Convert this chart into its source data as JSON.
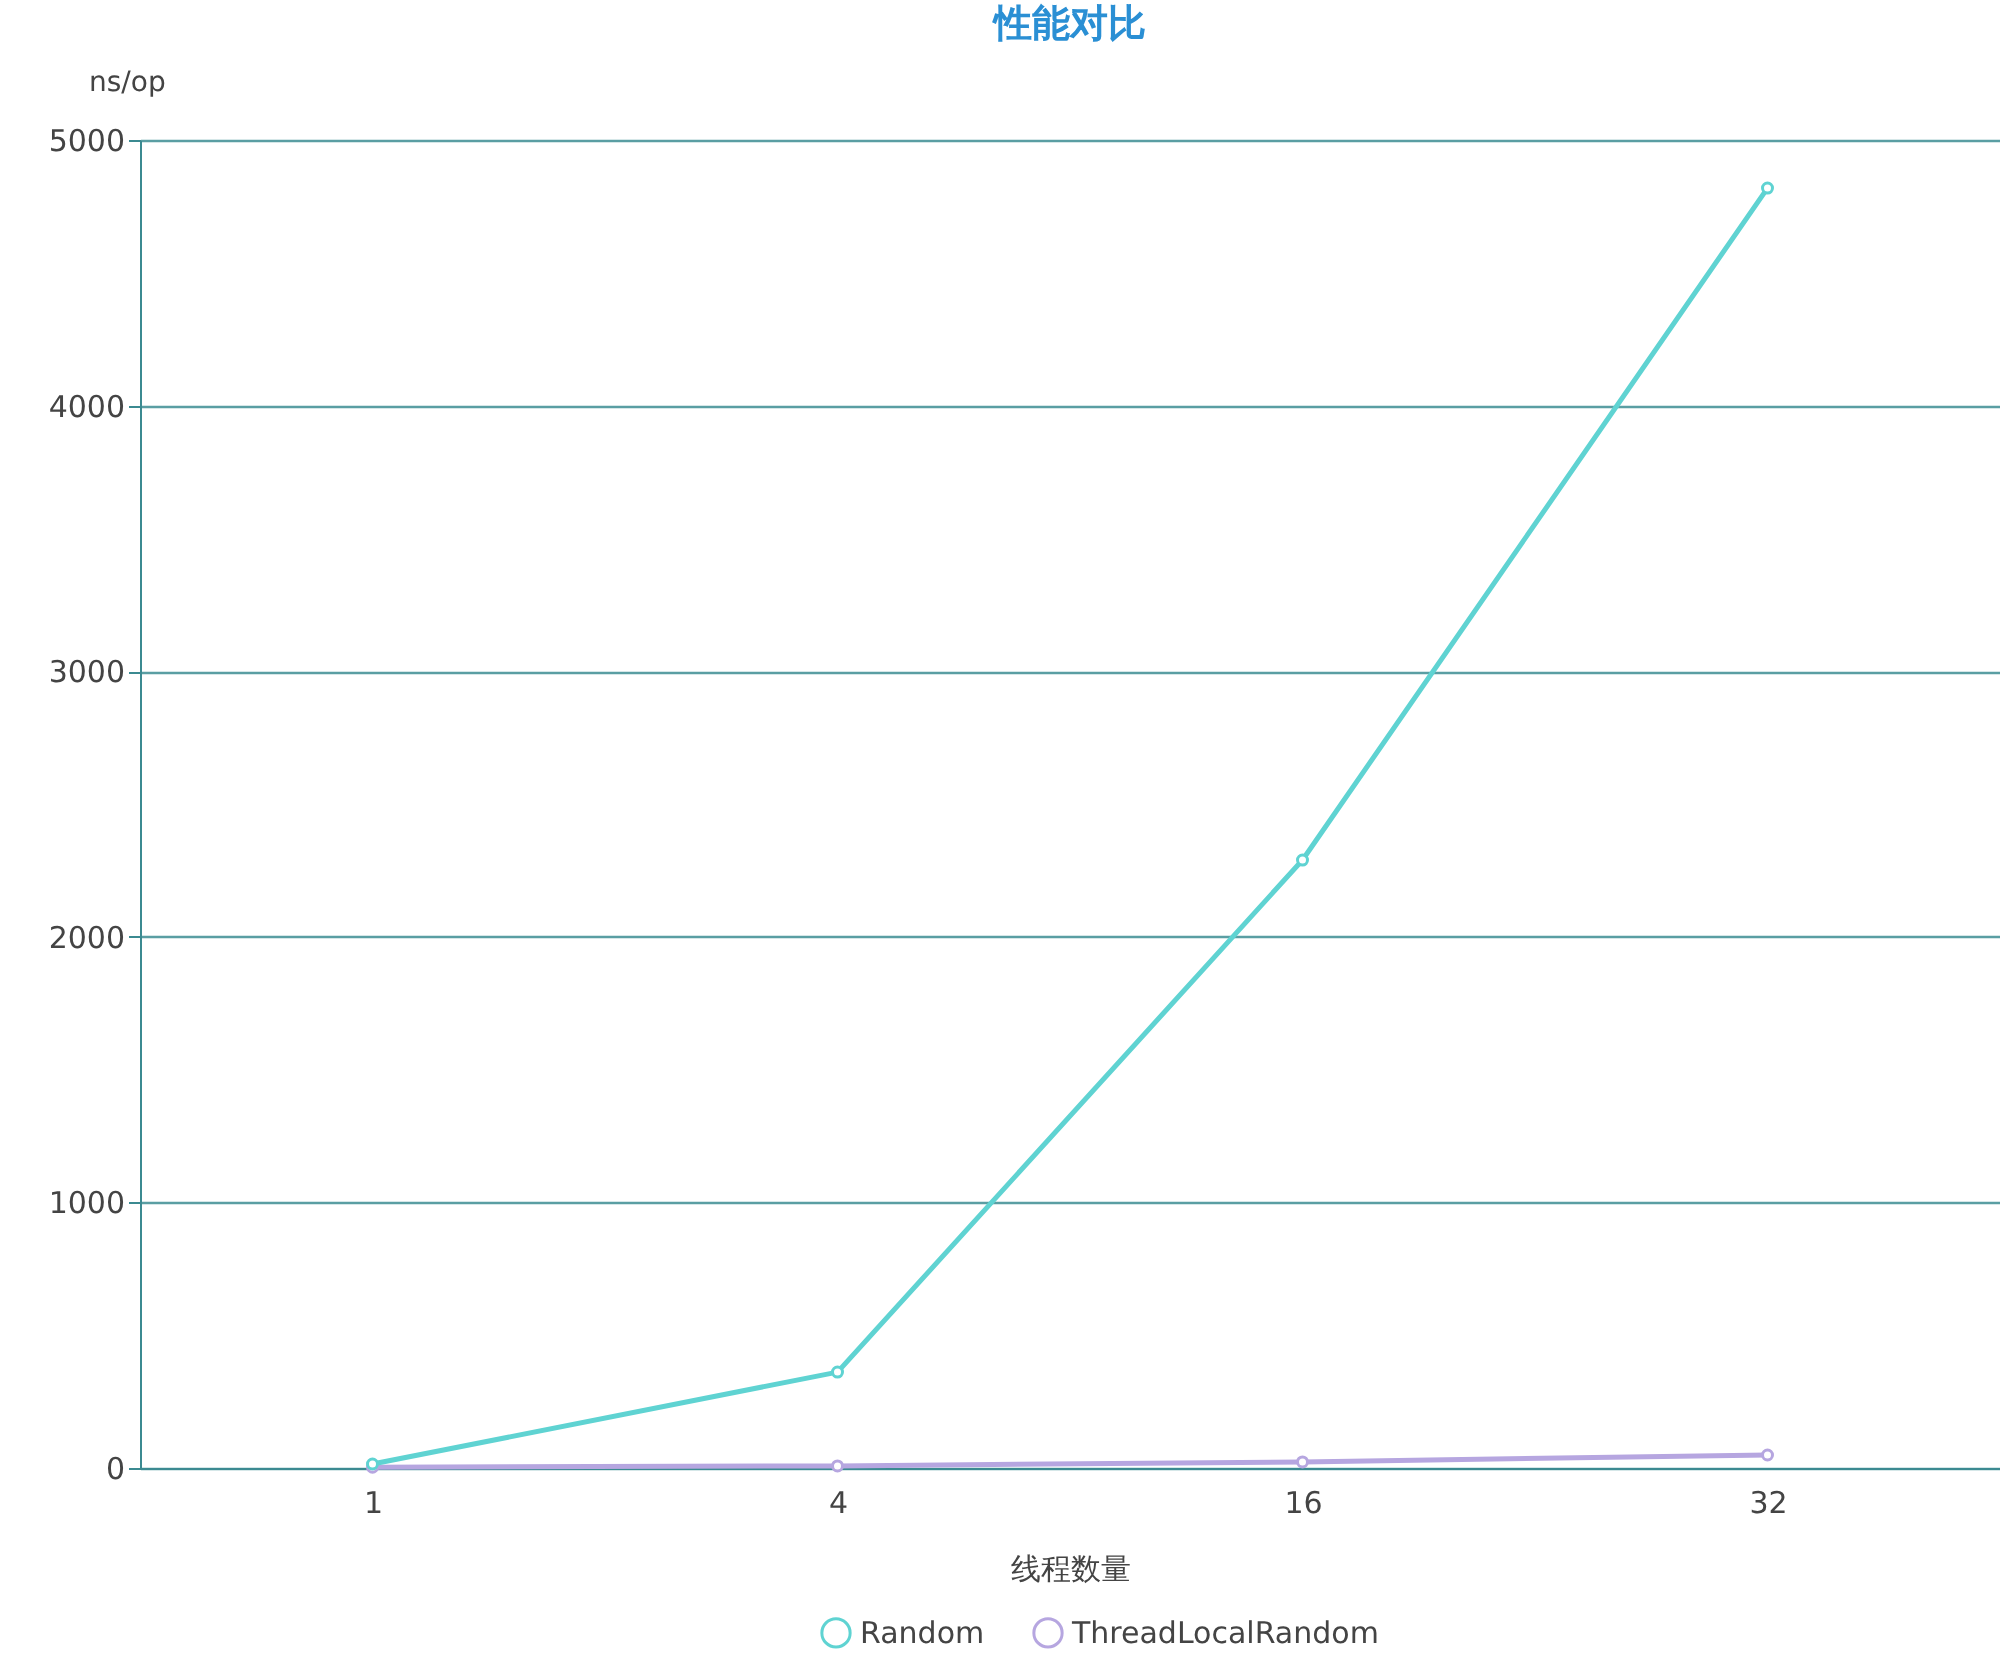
{
  "chart_data": {
    "type": "line",
    "title": "性能对比",
    "xlabel": "线程数量",
    "ylabel": "ns/op",
    "categories": [
      "1",
      "4",
      "16",
      "32"
    ],
    "series": [
      {
        "name": "Random",
        "color": "#5fd3d2",
        "values": [
          15,
          361,
          2289,
          4819
        ]
      },
      {
        "name": "ThreadLocalRandom",
        "color": "#b6a6e0",
        "values": [
          3,
          8,
          23,
          49
        ]
      }
    ],
    "ylim": [
      0,
      5000
    ],
    "yticks": [
      0,
      1000,
      2000,
      3000,
      4000,
      5000
    ],
    "grid": "y",
    "legend": "bottom",
    "marker": "circle"
  }
}
